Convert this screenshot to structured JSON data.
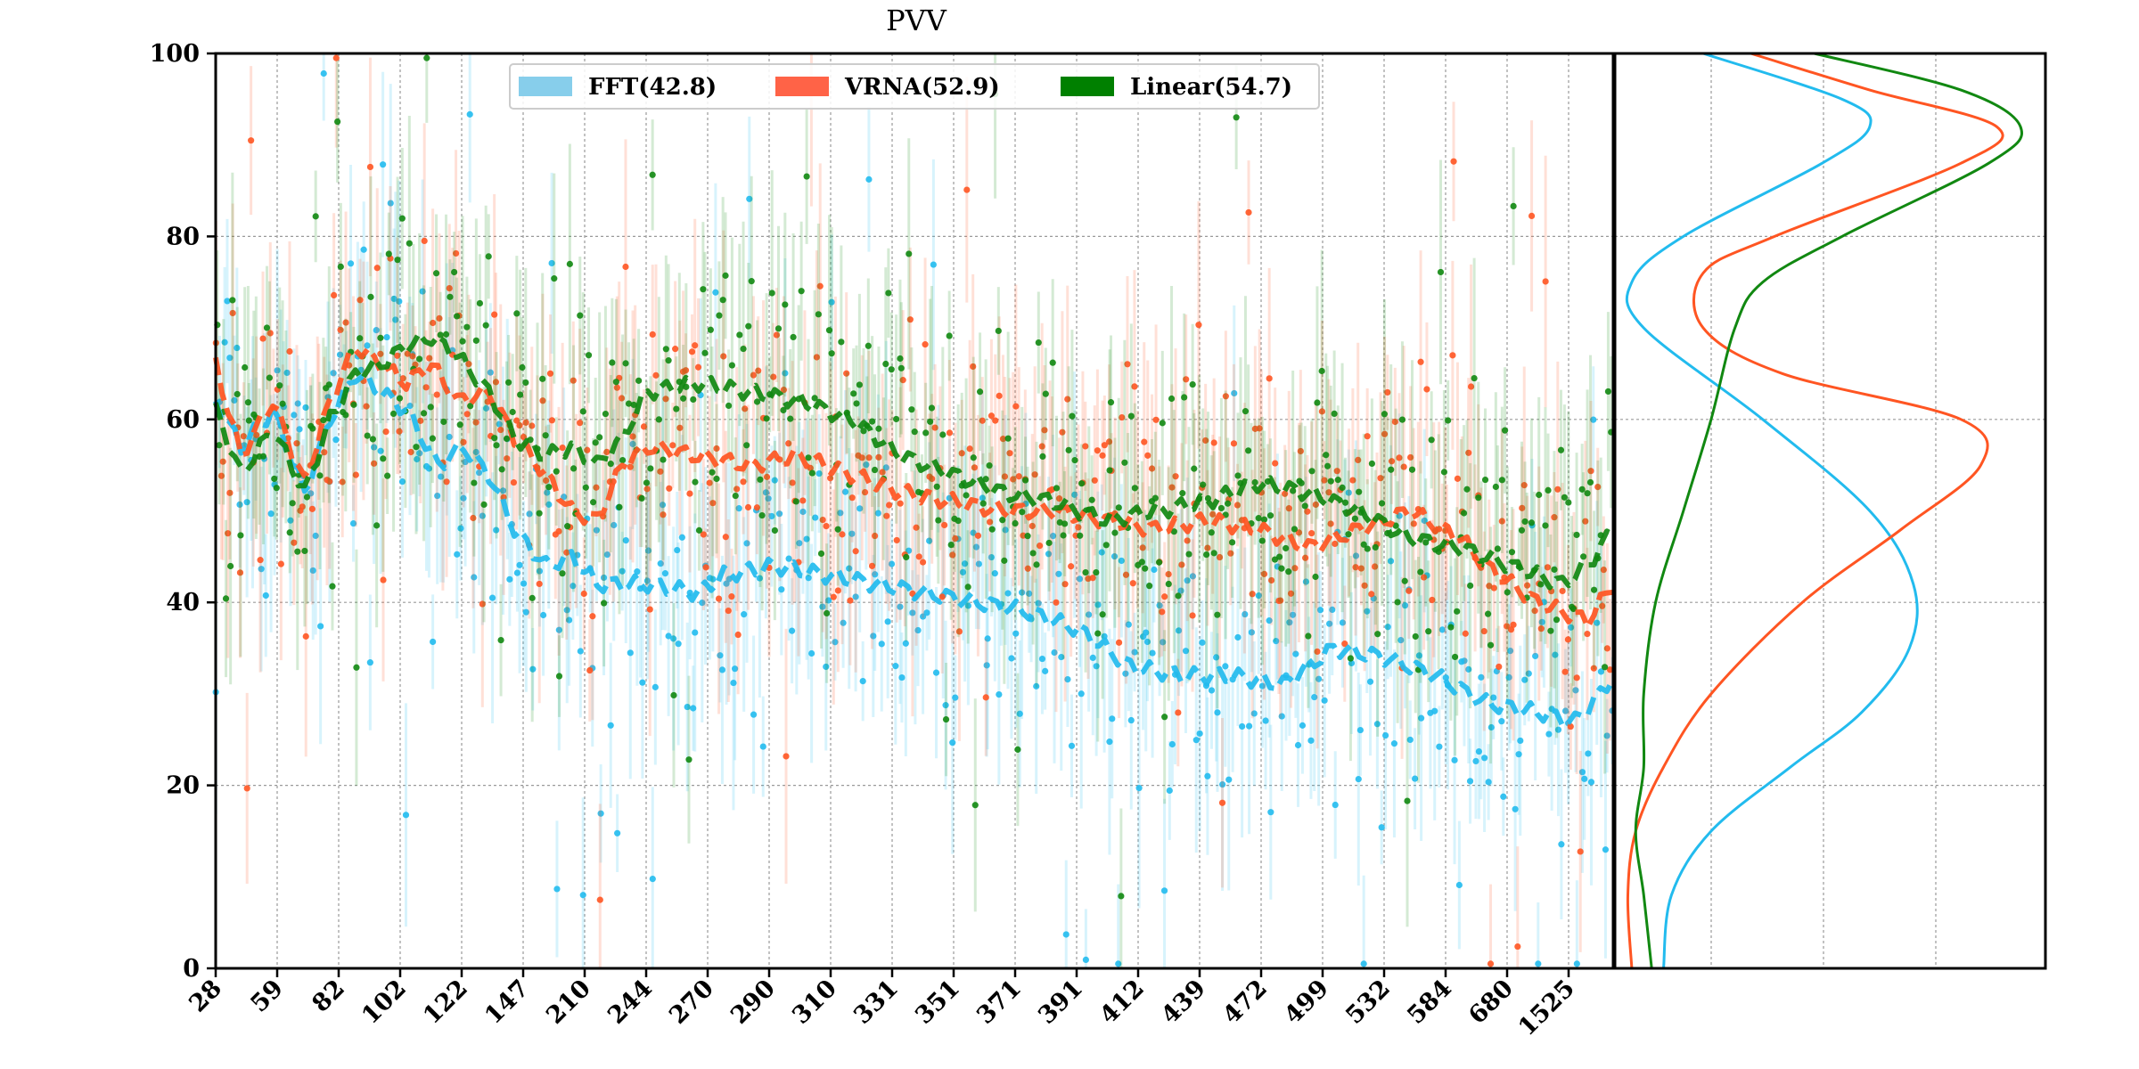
{
  "chart_data": {
    "type": "scatter",
    "title": "PVV",
    "xlabel": "",
    "ylabel": "",
    "ylim": [
      0,
      100
    ],
    "y_ticks": [
      "0",
      "20",
      "40",
      "60",
      "80",
      "100"
    ],
    "x_tick_labels": [
      "28",
      "59",
      "82",
      "102",
      "122",
      "147",
      "210",
      "244",
      "270",
      "290",
      "310",
      "331",
      "351",
      "371",
      "391",
      "412",
      "439",
      "472",
      "499",
      "532",
      "584",
      "680",
      "1525"
    ],
    "grid": true,
    "legend_position": "top-center",
    "side_panel": "density curves of each series, drawn on the same y axis",
    "series": [
      {
        "name": "FFT(42.8)",
        "color": "#22bbee",
        "legend_color": "#87ceeb",
        "trend": [
          [
            0,
            62
          ],
          [
            20,
            57
          ],
          [
            45,
            61
          ],
          [
            70,
            52
          ],
          [
            90,
            60
          ],
          [
            110,
            65
          ],
          [
            130,
            63
          ],
          [
            150,
            61
          ],
          [
            175,
            55
          ],
          [
            195,
            57
          ],
          [
            215,
            54
          ],
          [
            235,
            48
          ],
          [
            260,
            44
          ],
          [
            280,
            45
          ],
          [
            300,
            42
          ],
          [
            340,
            42
          ],
          [
            380,
            41
          ],
          [
            400,
            43
          ],
          [
            440,
            44
          ],
          [
            480,
            43
          ],
          [
            520,
            42
          ],
          [
            560,
            41
          ],
          [
            600,
            40
          ],
          [
            640,
            39
          ],
          [
            680,
            37
          ],
          [
            720,
            33
          ],
          [
            760,
            32
          ],
          [
            800,
            32
          ],
          [
            840,
            31
          ],
          [
            880,
            35
          ],
          [
            920,
            34
          ],
          [
            960,
            32
          ],
          [
            1000,
            29
          ],
          [
            1040,
            28
          ],
          [
            1070,
            27
          ],
          [
            1090,
            30
          ],
          [
            1100,
            32
          ]
        ],
        "density": [
          [
            100,
            0.2
          ],
          [
            95,
            0.55
          ],
          [
            92,
            0.62
          ],
          [
            88,
            0.5
          ],
          [
            80,
            0.15
          ],
          [
            75,
            0.02
          ],
          [
            70,
            0.05
          ],
          [
            60,
            0.35
          ],
          [
            50,
            0.62
          ],
          [
            42,
            0.73
          ],
          [
            35,
            0.72
          ],
          [
            28,
            0.6
          ],
          [
            22,
            0.42
          ],
          [
            15,
            0.22
          ],
          [
            8,
            0.12
          ],
          [
            0,
            0.1
          ]
        ]
      },
      {
        "name": "VRNA(52.9)",
        "color": "#ff5522",
        "legend_color": "#ff6347",
        "trend": [
          [
            0,
            66
          ],
          [
            20,
            56
          ],
          [
            45,
            62
          ],
          [
            70,
            53
          ],
          [
            90,
            62
          ],
          [
            110,
            68
          ],
          [
            130,
            66
          ],
          [
            150,
            64
          ],
          [
            170,
            66
          ],
          [
            190,
            62
          ],
          [
            215,
            63
          ],
          [
            235,
            58
          ],
          [
            260,
            54
          ],
          [
            280,
            50
          ],
          [
            300,
            49
          ],
          [
            320,
            55
          ],
          [
            340,
            57
          ],
          [
            380,
            56
          ],
          [
            420,
            55
          ],
          [
            460,
            56
          ],
          [
            500,
            54
          ],
          [
            540,
            52
          ],
          [
            580,
            51
          ],
          [
            620,
            50
          ],
          [
            660,
            50
          ],
          [
            700,
            49
          ],
          [
            740,
            48
          ],
          [
            780,
            49
          ],
          [
            820,
            48
          ],
          [
            860,
            46
          ],
          [
            900,
            48
          ],
          [
            940,
            50
          ],
          [
            980,
            47
          ],
          [
            1000,
            44
          ],
          [
            1040,
            40
          ],
          [
            1080,
            38
          ],
          [
            1100,
            42
          ]
        ],
        "density": [
          [
            100,
            0.32
          ],
          [
            96,
            0.62
          ],
          [
            92,
            0.94
          ],
          [
            88,
            0.85
          ],
          [
            80,
            0.38
          ],
          [
            76,
            0.2
          ],
          [
            70,
            0.2
          ],
          [
            65,
            0.4
          ],
          [
            60,
            0.85
          ],
          [
            55,
            0.9
          ],
          [
            48,
            0.7
          ],
          [
            40,
            0.45
          ],
          [
            30,
            0.22
          ],
          [
            22,
            0.1
          ],
          [
            15,
            0.03
          ],
          [
            8,
            0.01
          ],
          [
            0,
            0.02
          ]
        ]
      },
      {
        "name": "Linear(54.7)",
        "color": "#118811",
        "legend_color": "#008000",
        "trend": [
          [
            0,
            61
          ],
          [
            20,
            54
          ],
          [
            45,
            59
          ],
          [
            70,
            52
          ],
          [
            90,
            60
          ],
          [
            110,
            65
          ],
          [
            130,
            66
          ],
          [
            150,
            68
          ],
          [
            170,
            69
          ],
          [
            190,
            67
          ],
          [
            215,
            63
          ],
          [
            235,
            58
          ],
          [
            260,
            56
          ],
          [
            280,
            57
          ],
          [
            300,
            55
          ],
          [
            320,
            58
          ],
          [
            340,
            63
          ],
          [
            380,
            64
          ],
          [
            420,
            63
          ],
          [
            460,
            62
          ],
          [
            500,
            60
          ],
          [
            540,
            56
          ],
          [
            580,
            54
          ],
          [
            620,
            52
          ],
          [
            660,
            51
          ],
          [
            700,
            49
          ],
          [
            740,
            50
          ],
          [
            780,
            51
          ],
          [
            820,
            53
          ],
          [
            860,
            52
          ],
          [
            900,
            50
          ],
          [
            940,
            47
          ],
          [
            980,
            46
          ],
          [
            1020,
            44
          ],
          [
            1060,
            42
          ],
          [
            1080,
            44
          ],
          [
            1100,
            48
          ]
        ],
        "density": [
          [
            100,
            0.48
          ],
          [
            96,
            0.85
          ],
          [
            92,
            1.0
          ],
          [
            88,
            0.92
          ],
          [
            80,
            0.55
          ],
          [
            75,
            0.35
          ],
          [
            70,
            0.28
          ],
          [
            60,
            0.22
          ],
          [
            50,
            0.15
          ],
          [
            40,
            0.08
          ],
          [
            30,
            0.05
          ],
          [
            22,
            0.05
          ],
          [
            15,
            0.03
          ],
          [
            8,
            0.05
          ],
          [
            0,
            0.07
          ]
        ]
      }
    ]
  }
}
